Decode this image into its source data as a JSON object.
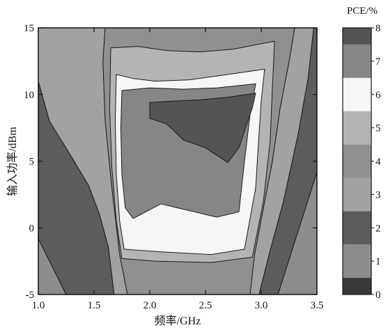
{
  "chart_data": {
    "type": "heatmap",
    "subtype": "filled-contour",
    "title": "",
    "xlabel": "频率/GHz",
    "ylabel": "输入功率/dBm",
    "xlim": [
      1.0,
      3.5
    ],
    "ylim": [
      -5,
      15
    ],
    "xticks": [
      "1.0",
      "1.5",
      "2.0",
      "2.5",
      "3.0",
      "3.5"
    ],
    "yticks": [
      "-5",
      "0",
      "5",
      "10",
      "15"
    ],
    "colorbar": {
      "title": "PCE/%",
      "min": 0,
      "max": 8,
      "ticks": [
        "0",
        "1",
        "2",
        "3",
        "4",
        "5",
        "6",
        "7",
        "8"
      ],
      "level_colors": [
        "#3a3a3a",
        "#8c8c8c",
        "#5c5c5c",
        "#a2a2a2",
        "#909090",
        "#b4b4b4",
        "#f6f6f6",
        "#868686",
        "#545454"
      ]
    },
    "contour_regions": [
      {
        "pce_level": 1,
        "polygon": [
          [
            1.0,
            -5
          ],
          [
            1.0,
            -0.8
          ],
          [
            1.25,
            -5
          ]
        ]
      },
      {
        "pce_level": 1,
        "polygon": [
          [
            3.15,
            -5
          ],
          [
            3.5,
            4.2
          ],
          [
            3.5,
            -5
          ]
        ]
      },
      {
        "pce_level": 2,
        "polygon": [
          [
            1.0,
            -0.8
          ],
          [
            1.0,
            11
          ],
          [
            1.1,
            8
          ],
          [
            1.3,
            5.3
          ],
          [
            1.45,
            3.2
          ],
          [
            1.55,
            1
          ],
          [
            1.63,
            -1.5
          ],
          [
            1.68,
            -5
          ],
          [
            1.25,
            -5
          ]
        ]
      },
      {
        "pce_level": 2,
        "polygon": [
          [
            3.5,
            4.2
          ],
          [
            3.15,
            -5
          ],
          [
            2.98,
            -5
          ],
          [
            3.07,
            -2
          ],
          [
            3.2,
            2
          ],
          [
            3.33,
            7
          ],
          [
            3.42,
            11.2
          ],
          [
            3.47,
            15
          ],
          [
            3.5,
            15
          ]
        ]
      },
      {
        "pce_level": 3,
        "polygon": [
          [
            1.0,
            15
          ],
          [
            1.0,
            11
          ],
          [
            1.1,
            8
          ],
          [
            1.3,
            5.3
          ],
          [
            1.45,
            3.2
          ],
          [
            1.55,
            1
          ],
          [
            1.63,
            -1.5
          ],
          [
            1.68,
            -5
          ],
          [
            1.8,
            -5
          ],
          [
            1.73,
            -2
          ],
          [
            1.66,
            3
          ],
          [
            1.6,
            8
          ],
          [
            1.58,
            12.5
          ],
          [
            1.6,
            15
          ]
        ]
      },
      {
        "pce_level": 3,
        "polygon": [
          [
            2.98,
            -5
          ],
          [
            3.07,
            -2
          ],
          [
            3.2,
            2
          ],
          [
            3.33,
            7
          ],
          [
            3.42,
            11.2
          ],
          [
            3.47,
            15
          ],
          [
            3.3,
            15
          ],
          [
            3.25,
            12.5
          ],
          [
            3.17,
            9
          ],
          [
            3.1,
            5
          ],
          [
            3.02,
            1.5
          ],
          [
            2.94,
            -2
          ],
          [
            2.9,
            -5
          ]
        ]
      },
      {
        "pce_level": 4,
        "polygon": [
          [
            1.8,
            -5
          ],
          [
            1.73,
            -2
          ],
          [
            1.66,
            3
          ],
          [
            1.6,
            8
          ],
          [
            1.58,
            12.5
          ],
          [
            1.6,
            15
          ],
          [
            3.3,
            15
          ],
          [
            3.25,
            12.5
          ],
          [
            3.17,
            9
          ],
          [
            3.1,
            5
          ],
          [
            3.02,
            1.5
          ],
          [
            2.94,
            -2
          ],
          [
            2.9,
            -5
          ]
        ]
      },
      {
        "pce_level": 5,
        "polygon": [
          [
            1.65,
            13.5
          ],
          [
            1.64,
            9
          ],
          [
            1.66,
            4.5
          ],
          [
            1.7,
            0.5
          ],
          [
            1.75,
            -2.3
          ],
          [
            2.05,
            -2.5
          ],
          [
            2.55,
            -2.6
          ],
          [
            2.92,
            -2.2
          ],
          [
            3.02,
            2
          ],
          [
            3.08,
            6.5
          ],
          [
            3.1,
            10.5
          ],
          [
            3.12,
            14
          ],
          [
            2.75,
            13.4
          ],
          [
            2.45,
            13.2
          ],
          [
            2.15,
            13.3
          ],
          [
            1.9,
            13.6
          ]
        ]
      },
      {
        "pce_level": 6,
        "polygon": [
          [
            1.7,
            11.5
          ],
          [
            1.69,
            8
          ],
          [
            1.7,
            4
          ],
          [
            1.73,
            0.5
          ],
          [
            1.77,
            -1.6
          ],
          [
            2.1,
            -1.8
          ],
          [
            2.55,
            -2.0
          ],
          [
            2.85,
            -1.6
          ],
          [
            2.95,
            3
          ],
          [
            2.98,
            7
          ],
          [
            3.0,
            9.5
          ],
          [
            3.03,
            11.9
          ],
          [
            2.7,
            11.5
          ],
          [
            2.35,
            11.1
          ],
          [
            2.05,
            11
          ],
          [
            1.85,
            11.2
          ]
        ]
      },
      {
        "pce_level": 7,
        "polygon": [
          [
            1.75,
            10.3
          ],
          [
            1.74,
            7.5
          ],
          [
            1.75,
            4
          ],
          [
            1.78,
            1.5
          ],
          [
            1.85,
            0.7
          ],
          [
            2.1,
            1.8
          ],
          [
            2.4,
            1.2
          ],
          [
            2.6,
            0.8
          ],
          [
            2.8,
            1.2
          ],
          [
            2.85,
            5
          ],
          [
            2.9,
            8.5
          ],
          [
            2.95,
            10.8
          ],
          [
            2.6,
            10.5
          ],
          [
            2.3,
            10.4
          ],
          [
            2.0,
            10.5
          ]
        ]
      },
      {
        "pce_level": 8,
        "polygon": [
          [
            2.0,
            9.4
          ],
          [
            2.0,
            8.2
          ],
          [
            2.15,
            7.8
          ],
          [
            2.3,
            6.6
          ],
          [
            2.5,
            6.0
          ],
          [
            2.7,
            4.9
          ],
          [
            2.8,
            6.0
          ],
          [
            2.92,
            9.0
          ],
          [
            2.95,
            10.1
          ],
          [
            2.7,
            9.8
          ],
          [
            2.45,
            9.6
          ],
          [
            2.2,
            9.5
          ]
        ]
      }
    ]
  }
}
